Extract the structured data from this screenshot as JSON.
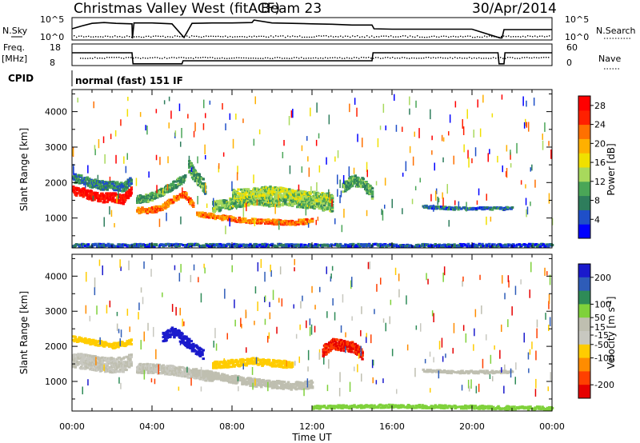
{
  "header": {
    "station": "Christmas Valley West (fitACF)",
    "beam": "Beam 23",
    "date": "30/Apr/2014"
  },
  "status_panels": {
    "nsky_label": "N.Sky",
    "nsky_ticks": [
      "10^5",
      "10^0"
    ],
    "nsearch_label": "N.Search",
    "nsearch_ticks": [
      "10^5",
      "10^0"
    ],
    "freq_label": "Freq.",
    "freq_unit": "[MHz]",
    "freq_ticks": [
      "18",
      "8"
    ],
    "nave_label": "Nave",
    "nave_ticks": [
      "60",
      "0"
    ],
    "cpid_label": "CPID",
    "cpid_text": "normal (fast) 151 IF"
  },
  "colors": {
    "power_scale": [
      "#0000ff",
      "#1f4fc8",
      "#2e7d5c",
      "#4aa657",
      "#a8d95c",
      "#f0e000",
      "#ffb000",
      "#ff7000",
      "#ff2000",
      "#ff0000"
    ],
    "velocity_scale": [
      "#1a1acc",
      "#2e5cb8",
      "#2e8b57",
      "#7fd13b",
      "#bfbfb0",
      "#c8c8c0",
      "#ffcc00",
      "#ff8c00",
      "#ff4000",
      "#e60000"
    ]
  },
  "chart_data": [
    {
      "type": "line",
      "panel": "nsky",
      "x": [
        0,
        0.5,
        1.0,
        1.6,
        2.2,
        3.0,
        3.02,
        3.1,
        4.0,
        5.0,
        5.6,
        6.0,
        7.0,
        8.0,
        9.0,
        9.1,
        10.0,
        11.0,
        12.0,
        13.0,
        14.0,
        15.0,
        15.1,
        16.0,
        18.0,
        20.0,
        21.4,
        21.5,
        21.6,
        22.0,
        23.0,
        24.0
      ],
      "values": [
        2.5,
        3.2,
        3.8,
        4.0,
        3.8,
        3.7,
        0.2,
        3.9,
        3.9,
        3.7,
        0.4,
        3.8,
        3.9,
        3.9,
        4.0,
        4.6,
        3.9,
        3.8,
        3.7,
        3.6,
        3.4,
        3.4,
        2.5,
        2.4,
        2.4,
        2.4,
        0.3,
        0.3,
        2.3,
        2.3,
        2.3,
        2.3
      ],
      "ylim": [
        0,
        5
      ]
    },
    {
      "type": "line",
      "panel": "freq",
      "x": [
        0,
        3.0,
        3.05,
        5.5,
        5.55,
        15.0,
        15.05,
        21.3,
        21.35,
        21.6,
        21.65,
        24.0
      ],
      "values": [
        14,
        14,
        8.5,
        8.5,
        10,
        10,
        14,
        14,
        8.5,
        8.5,
        14,
        14
      ],
      "ylim": [
        8,
        18
      ]
    },
    {
      "type": "heatmap",
      "title": "Power",
      "xlabel": "Time UT",
      "ylabel": "Slant Range [km]",
      "x_ticks": [
        "00:00",
        "04:00",
        "08:00",
        "12:00",
        "16:00",
        "20:00",
        "00:00"
      ],
      "xlim": [
        0,
        24
      ],
      "y_ticks": [
        1000,
        2000,
        3000,
        4000
      ],
      "ylim": [
        180,
        4600
      ],
      "colorbar_label": "Power [dB]",
      "colorbar_ticks": [
        4,
        8,
        12,
        16,
        20,
        24,
        28
      ],
      "colorbar_range": [
        0,
        30
      ],
      "features": [
        {
          "t": [
            0.0,
            0.5,
            1.0,
            1.5,
            2.0,
            2.5,
            2.9
          ],
          "range_center": [
            1800,
            1750,
            1650,
            1600,
            1620,
            1550,
            1800
          ],
          "width": 250,
          "value": 28
        },
        {
          "t": [
            0.0,
            0.5,
            1.0,
            1.5,
            2.0,
            2.5,
            2.9
          ],
          "range_center": [
            2150,
            2100,
            2000,
            1950,
            1950,
            1900,
            2050
          ],
          "width": 250,
          "value": 8
        },
        {
          "t": [
            3.2,
            3.8,
            4.4,
            5.0,
            5.6,
            6.0
          ],
          "range_center": [
            1250,
            1250,
            1300,
            1550,
            1700,
            1400
          ],
          "width": 160,
          "value": 22
        },
        {
          "t": [
            3.2,
            3.8,
            4.4,
            5.0,
            5.6
          ],
          "range_center": [
            1550,
            1600,
            1750,
            1950,
            2150
          ],
          "width": 220,
          "value": 10
        },
        {
          "t": [
            5.8,
            6.0,
            6.3,
            6.6
          ],
          "range_center": [
            2500,
            2300,
            2100,
            1900
          ],
          "width": 350,
          "value": 10
        },
        {
          "t": [
            6.2,
            7.0,
            8.0,
            9.0,
            10.0,
            11.0,
            12.0
          ],
          "range_center": [
            1150,
            1080,
            1000,
            950,
            920,
            900,
            950
          ],
          "width": 130,
          "value": 22
        },
        {
          "t": [
            7.0,
            8.0,
            9.0,
            10.0,
            11.0,
            12.0,
            13.0
          ],
          "range_center": [
            1350,
            1450,
            1550,
            1500,
            1500,
            1450,
            1350
          ],
          "width": 300,
          "value": 12
        },
        {
          "t": [
            8.0,
            9.0,
            10.0,
            11.0,
            12.0,
            13.0
          ],
          "range_center": [
            1700,
            1750,
            1800,
            1700,
            1650,
            1600
          ],
          "width": 250,
          "value": 14
        },
        {
          "t": [
            13.5,
            14.0,
            14.5,
            15.0
          ],
          "range_center": [
            1900,
            2100,
            2000,
            1700
          ],
          "width": 300,
          "value": 10
        },
        {
          "t": [
            17.5,
            19.0,
            20.5,
            22.0
          ],
          "range_center": [
            1350,
            1300,
            1300,
            1300
          ],
          "width": 70,
          "value": 6
        },
        {
          "t": [
            0.0,
            6.0,
            12.0,
            18.0,
            24.0
          ],
          "range_center": [
            260,
            260,
            260,
            260,
            260
          ],
          "width": 80,
          "value": 5
        }
      ]
    },
    {
      "type": "heatmap",
      "title": "Velocity",
      "xlabel": "Time UT",
      "ylabel": "Slant Range [km]",
      "x_ticks": [
        "00:00",
        "04:00",
        "08:00",
        "12:00",
        "16:00",
        "20:00",
        "00:00"
      ],
      "xlim": [
        0,
        24
      ],
      "y_ticks": [
        1000,
        2000,
        3000,
        4000
      ],
      "ylim": [
        180,
        4600
      ],
      "colorbar_label": "Velocity [m s^-1]",
      "colorbar_ticks": [
        200,
        100,
        50,
        15,
        -15,
        -50,
        -100,
        -200
      ],
      "colorbar_range": [
        -250,
        250
      ],
      "features": [
        {
          "t": [
            0.0,
            0.5,
            1.0,
            1.5,
            2.0,
            2.5,
            2.9
          ],
          "range_center": [
            1650,
            1600,
            1550,
            1500,
            1500,
            1500,
            1650
          ],
          "width": 420,
          "value": 0
        },
        {
          "t": [
            0.0,
            1.0,
            2.0,
            2.9
          ],
          "range_center": [
            2250,
            2150,
            2050,
            2150
          ],
          "width": 150,
          "value": -80
        },
        {
          "t": [
            3.2,
            4.0,
            5.0,
            6.0,
            7.0
          ],
          "range_center": [
            1400,
            1400,
            1350,
            1250,
            1150
          ],
          "width": 260,
          "value": 0
        },
        {
          "t": [
            4.5,
            5.0,
            5.5,
            6.0,
            6.5
          ],
          "range_center": [
            2300,
            2450,
            2250,
            2000,
            1800
          ],
          "width": 280,
          "value": 220
        },
        {
          "t": [
            6.0,
            7.0,
            8.0,
            9.0,
            10.0,
            11.0,
            12.0
          ],
          "range_center": [
            1300,
            1200,
            1100,
            1000,
            950,
            900,
            950
          ],
          "width": 220,
          "value": 40
        },
        {
          "t": [
            7.0,
            8.0,
            9.0,
            10.0,
            11.0
          ],
          "range_center": [
            1500,
            1550,
            1600,
            1550,
            1500
          ],
          "width": 200,
          "value": -70
        },
        {
          "t": [
            12.5,
            13.0,
            13.5,
            14.0,
            14.5
          ],
          "range_center": [
            1900,
            2100,
            2050,
            2000,
            1800
          ],
          "width": 300,
          "value": -200
        },
        {
          "t": [
            17.5,
            19.0,
            20.5,
            22.0
          ],
          "range_center": [
            1350,
            1300,
            1300,
            1300
          ],
          "width": 70,
          "value": 5
        },
        {
          "t": [
            12.0,
            16.0,
            20.0,
            24.0
          ],
          "range_center": [
            300,
            330,
            300,
            260
          ],
          "width": 90,
          "value": 60
        }
      ]
    }
  ]
}
